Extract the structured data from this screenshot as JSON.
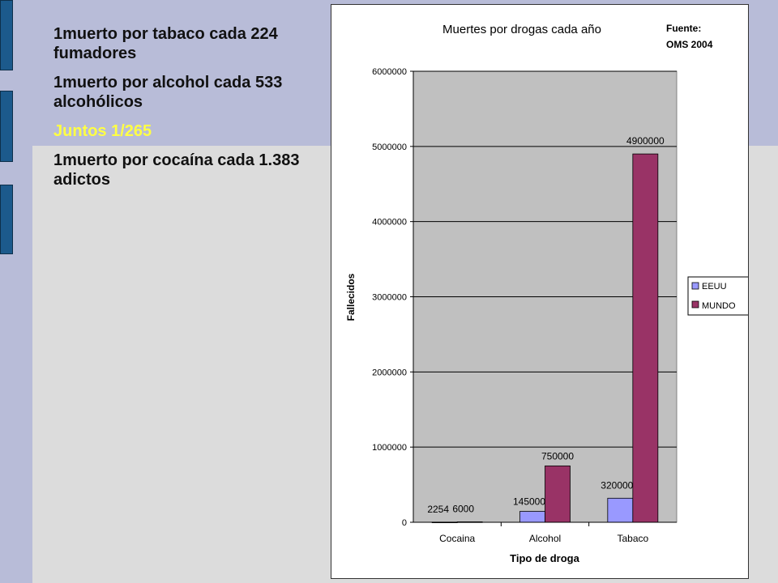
{
  "text_lines": [
    "1muerto por tabaco cada 224 fumadores",
    "1muerto por alcohol cada 533 alcohólicos",
    "Juntos 1/265",
    "1muerto por cocaína cada 1.383 adictos"
  ],
  "colors": {
    "slide_bg": "#dcdcdc",
    "band": "#b8bcd8",
    "tab": "#1c5a8c",
    "highlight_text": "#ffff44",
    "plot_bg": "#c0c0c0",
    "series_eeuu": "#9999ff",
    "series_mundo": "#993366"
  },
  "chart_data": {
    "type": "bar",
    "title": "Muertes por drogas cada año",
    "source_note": [
      "Fuente:",
      "OMS 2004"
    ],
    "xlabel": "Tipo de droga",
    "ylabel": "Fallecidos",
    "categories": [
      "Cocaina",
      "Alcohol",
      "Tabaco"
    ],
    "series": [
      {
        "name": "EEUU",
        "values": [
          2254,
          145000,
          320000
        ]
      },
      {
        "name": "MUNDO",
        "values": [
          6000,
          750000,
          4900000
        ]
      }
    ],
    "ylim": [
      0,
      6000000
    ],
    "yticks": [
      "0",
      "1000000",
      "2000000",
      "3000000",
      "4000000",
      "5000000",
      "6000000"
    ],
    "grid": true,
    "legend": "right"
  }
}
